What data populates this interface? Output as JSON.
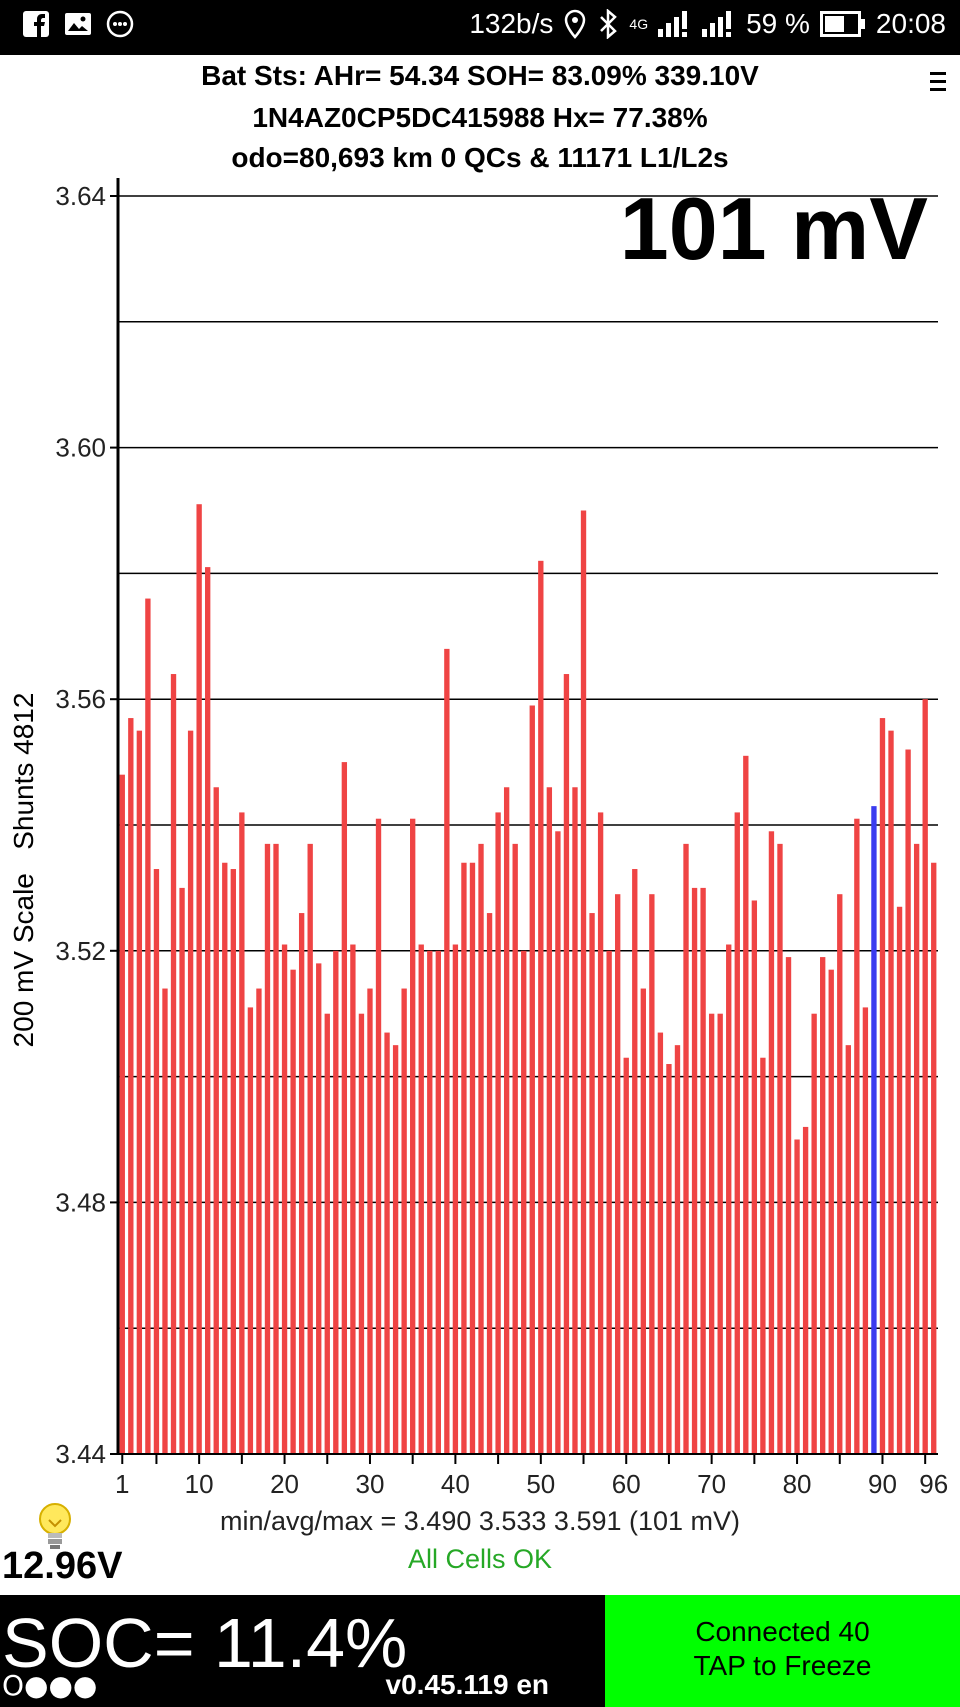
{
  "status_bar": {
    "left_icons": [
      "facebook-icon",
      "image-icon",
      "more-dots-icon"
    ],
    "data_rate": "132b/s",
    "network": "4G",
    "battery_percent": "59 %",
    "time": "20:08"
  },
  "header": {
    "line1": "Bat Sts:  AHr= 54.34  SOH= 83.09%   339.10V",
    "line2": "1N4AZ0CP5DC415988   Hx= 77.38%",
    "line3": "odo=80,693 km 0 QCs & 11171 L1/L2s"
  },
  "spread_display": "101 mV",
  "y_axis_label": "200 mV Scale   Shunts 4812",
  "stats_line": "min/avg/max = 3.490 3.533 3.591  (101 mV)",
  "cells_status": "All Cells OK",
  "aux_voltage": "12.96V",
  "soc": "SOC= 11.4%",
  "dots": "O●●●",
  "version": "v0.45.119 en",
  "connection": {
    "line1": "Connected 40",
    "line2": "TAP to Freeze"
  },
  "colors": {
    "bar": "#ef4444",
    "highlight_bar": "#3b3bef",
    "ok_text": "#26a826",
    "connect_bg": "#00ff00"
  },
  "chart_data": {
    "type": "bar",
    "title": "",
    "xlabel": "",
    "ylabel": "200 mV Scale   Shunts 4812",
    "ylim": [
      3.44,
      3.64
    ],
    "yticks": [
      "3.64",
      "3.60",
      "3.56",
      "3.52",
      "3.48",
      "3.44"
    ],
    "ytick_values": [
      3.64,
      3.6,
      3.56,
      3.52,
      3.48,
      3.44
    ],
    "gridlines": [
      3.64,
      3.62,
      3.6,
      3.58,
      3.56,
      3.54,
      3.52,
      3.5,
      3.48,
      3.46
    ],
    "xticks": [
      "1",
      "10",
      "20",
      "30",
      "40",
      "50",
      "60",
      "70",
      "80",
      "90",
      "96"
    ],
    "xtick_values": [
      1,
      10,
      20,
      30,
      40,
      50,
      60,
      70,
      80,
      90,
      96
    ],
    "highlight_cell": 89,
    "x": [
      1,
      2,
      3,
      4,
      5,
      6,
      7,
      8,
      9,
      10,
      11,
      12,
      13,
      14,
      15,
      16,
      17,
      18,
      19,
      20,
      21,
      22,
      23,
      24,
      25,
      26,
      27,
      28,
      29,
      30,
      31,
      32,
      33,
      34,
      35,
      36,
      37,
      38,
      39,
      40,
      41,
      42,
      43,
      44,
      45,
      46,
      47,
      48,
      49,
      50,
      51,
      52,
      53,
      54,
      55,
      56,
      57,
      58,
      59,
      60,
      61,
      62,
      63,
      64,
      65,
      66,
      67,
      68,
      69,
      70,
      71,
      72,
      73,
      74,
      75,
      76,
      77,
      78,
      79,
      80,
      81,
      82,
      83,
      84,
      85,
      86,
      87,
      88,
      89,
      90,
      91,
      92,
      93,
      94,
      95,
      96
    ],
    "values": [
      3.548,
      3.557,
      3.555,
      3.576,
      3.533,
      3.514,
      3.564,
      3.53,
      3.555,
      3.591,
      3.581,
      3.546,
      3.534,
      3.533,
      3.542,
      3.511,
      3.514,
      3.537,
      3.537,
      3.521,
      3.517,
      3.526,
      3.537,
      3.518,
      3.51,
      3.52,
      3.55,
      3.521,
      3.51,
      3.514,
      3.541,
      3.507,
      3.505,
      3.514,
      3.541,
      3.521,
      3.52,
      3.52,
      3.568,
      3.521,
      3.534,
      3.534,
      3.537,
      3.526,
      3.542,
      3.546,
      3.537,
      3.52,
      3.559,
      3.582,
      3.546,
      3.539,
      3.564,
      3.546,
      3.59,
      3.526,
      3.542,
      3.52,
      3.529,
      3.503,
      3.533,
      3.514,
      3.529,
      3.507,
      3.502,
      3.505,
      3.537,
      3.53,
      3.53,
      3.51,
      3.51,
      3.521,
      3.542,
      3.551,
      3.528,
      3.503,
      3.539,
      3.537,
      3.519,
      3.49,
      3.492,
      3.51,
      3.519,
      3.517,
      3.529,
      3.505,
      3.541,
      3.511,
      3.543,
      3.557,
      3.555,
      3.527,
      3.552,
      3.537,
      3.56,
      3.534
    ]
  }
}
